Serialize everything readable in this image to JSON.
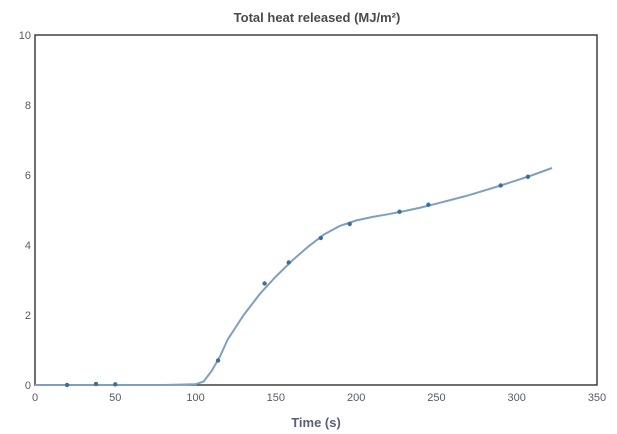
{
  "chart_data": {
    "type": "line",
    "title": "Total heat released (MJ/m²)",
    "xlabel": "Time (s)",
    "ylabel": "",
    "xlim": [
      0,
      350
    ],
    "ylim": [
      0,
      10
    ],
    "xticks": [
      "0",
      "50",
      "100",
      "150",
      "200",
      "250",
      "300",
      "350"
    ],
    "yticks": [
      "0",
      "2",
      "4",
      "6",
      "8",
      "10"
    ],
    "grid": false,
    "series": [
      {
        "color": "#7f9fc2",
        "x": [
          0,
          20,
          40,
          50,
          60,
          80,
          100,
          105,
          110,
          115,
          120,
          130,
          140,
          150,
          160,
          170,
          180,
          190,
          200,
          210,
          220,
          230,
          240,
          250,
          260,
          270,
          280,
          290,
          300,
          310,
          322
        ],
        "y": [
          0,
          0,
          0,
          0,
          0,
          0,
          0.02,
          0.1,
          0.4,
          0.8,
          1.3,
          2.0,
          2.6,
          3.1,
          3.55,
          3.95,
          4.3,
          4.55,
          4.7,
          4.8,
          4.88,
          4.97,
          5.07,
          5.18,
          5.3,
          5.42,
          5.56,
          5.7,
          5.85,
          6.0,
          6.2
        ]
      }
    ],
    "markers": {
      "x": [
        20,
        38,
        50,
        114,
        143,
        158,
        178,
        196,
        227,
        245,
        290,
        307
      ],
      "y": [
        0,
        0.03,
        0.02,
        0.7,
        2.9,
        3.5,
        4.2,
        4.6,
        4.95,
        5.15,
        5.7,
        5.95
      ]
    }
  }
}
